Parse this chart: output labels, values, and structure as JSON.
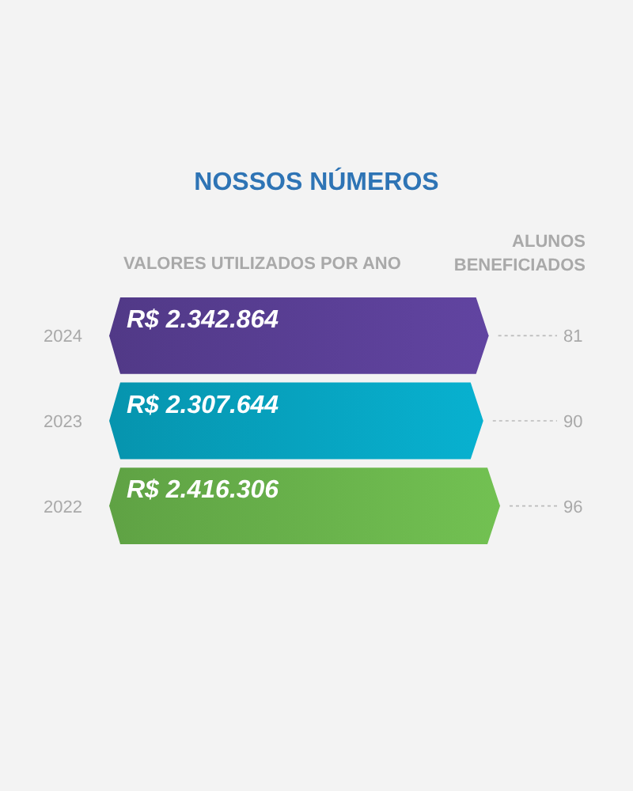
{
  "chart_data": {
    "type": "bar",
    "orientation": "horizontal",
    "title": "NOSSOS NÚMEROS",
    "xlabel": "VALORES UTILIZADOS POR ANO",
    "y2label": "ALUNOS BENEFICIADOS",
    "categories": [
      "2024",
      "2023",
      "2022"
    ],
    "values": [
      2342864,
      2307644,
      2416306
    ],
    "colors": [
      "#5a3f96",
      "#07a5c2",
      "#6ab44c"
    ],
    "value_labels": [
      "R$ 2.342.864",
      "R$ 2.307.644",
      "R$ 2.416.306"
    ],
    "annotations": [
      "81",
      "90",
      "96"
    ]
  }
}
